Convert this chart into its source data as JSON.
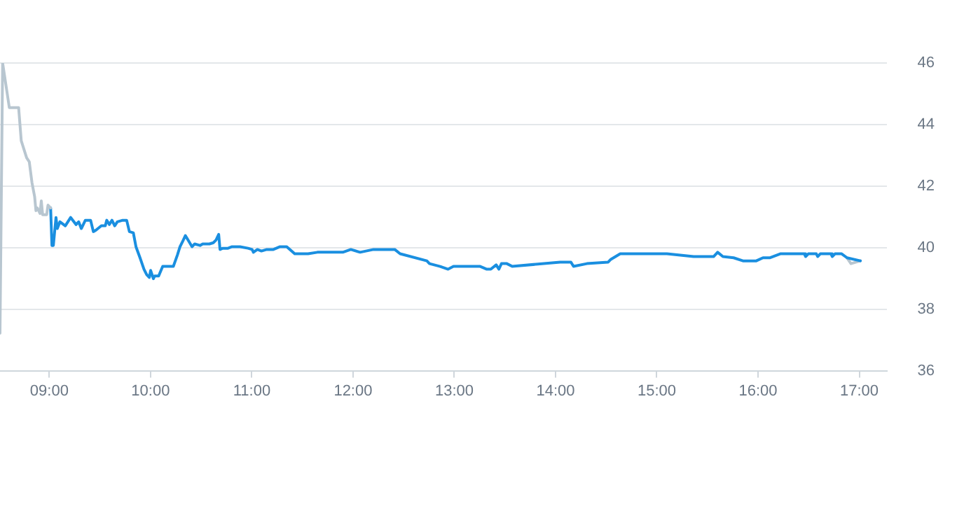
{
  "chart_data": {
    "type": "line",
    "xlim": [
      8.513,
      17.27
    ],
    "ylim": [
      36,
      46
    ],
    "xticks": [
      {
        "value": 9,
        "label": "09:00"
      },
      {
        "value": 10,
        "label": "10:00"
      },
      {
        "value": 11,
        "label": "11:00"
      },
      {
        "value": 12,
        "label": "12:00"
      },
      {
        "value": 13,
        "label": "13:00"
      },
      {
        "value": 14,
        "label": "14:00"
      },
      {
        "value": 15,
        "label": "15:00"
      },
      {
        "value": 16,
        "label": "16:00"
      },
      {
        "value": 17,
        "label": "17:00"
      }
    ],
    "yticks": [
      36,
      38,
      40,
      42,
      44,
      46
    ],
    "grid": "y",
    "marker": "none",
    "line_style": "solid",
    "series": [
      {
        "color": "#b8c6d0",
        "x": [
          8.513,
          8.539,
          8.605,
          8.697,
          8.723,
          8.776,
          8.802,
          8.829,
          8.855,
          8.868,
          8.881,
          8.895,
          8.908,
          8.921,
          8.934,
          8.974,
          8.987,
          9.013
        ],
        "values": [
          37.22,
          46,
          44.55,
          44.55,
          43.47,
          42.92,
          42.79,
          42.11,
          41.66,
          41.2,
          41.29,
          41.2,
          41.11,
          41.52,
          41.07,
          41.07,
          41.38,
          41.29
        ]
      },
      {
        "color": "#1a8fe0",
        "x": [
          9.013,
          9.026,
          9.04,
          9.066,
          9.079,
          9.105,
          9.158,
          9.211,
          9.264,
          9.29,
          9.316,
          9.356,
          9.408,
          9.435,
          9.461,
          9.514,
          9.553,
          9.567,
          9.593,
          9.619,
          9.646,
          9.672,
          9.725,
          9.764,
          9.791,
          9.83,
          9.856,
          9.896,
          9.935,
          9.962,
          9.988,
          10.001,
          10.028,
          10.041,
          10.08,
          10.12,
          10.225,
          10.265,
          10.291,
          10.318,
          10.344,
          10.37,
          10.41,
          10.436,
          10.489,
          10.515,
          10.581,
          10.621,
          10.647,
          10.673,
          10.686,
          10.713,
          10.765,
          10.805,
          10.884,
          10.963,
          11.003,
          11.016,
          11.055,
          11.095,
          11.148,
          11.213,
          11.279,
          11.345,
          11.424,
          11.556,
          11.648,
          11.899,
          11.978,
          12.07,
          12.202,
          12.412,
          12.465,
          12.729,
          12.755,
          12.86,
          12.939,
          12.992,
          13.256,
          13.321,
          13.361,
          13.414,
          13.44,
          13.466,
          13.519,
          13.572,
          14.046,
          14.152,
          14.178,
          14.31,
          14.52,
          14.547,
          14.639,
          15.1,
          15.364,
          15.561,
          15.601,
          15.653,
          15.759,
          15.851,
          15.983,
          16.049,
          16.115,
          16.22,
          16.259,
          16.457,
          16.47,
          16.497,
          16.576,
          16.589,
          16.615,
          16.72,
          16.733,
          16.76,
          16.826,
          16.879,
          17.011
        ],
        "values": [
          41.29,
          40.07,
          40.07,
          40.98,
          40.62,
          40.84,
          40.71,
          40.98,
          40.75,
          40.84,
          40.62,
          40.89,
          40.89,
          40.52,
          40.57,
          40.71,
          40.71,
          40.89,
          40.75,
          40.89,
          40.71,
          40.84,
          40.89,
          40.89,
          40.52,
          40.48,
          40.03,
          39.67,
          39.3,
          39.12,
          39.03,
          39.26,
          38.99,
          39.08,
          39.08,
          39.39,
          39.39,
          39.76,
          40.03,
          40.21,
          40.39,
          40.25,
          40.03,
          40.12,
          40.07,
          40.12,
          40.12,
          40.16,
          40.25,
          40.43,
          39.94,
          39.98,
          39.98,
          40.03,
          40.03,
          39.98,
          39.94,
          39.85,
          39.94,
          39.89,
          39.94,
          39.94,
          40.03,
          40.03,
          39.8,
          39.8,
          39.85,
          39.85,
          39.94,
          39.85,
          39.94,
          39.94,
          39.8,
          39.57,
          39.48,
          39.39,
          39.3,
          39.39,
          39.39,
          39.3,
          39.3,
          39.44,
          39.3,
          39.48,
          39.48,
          39.39,
          39.53,
          39.53,
          39.39,
          39.48,
          39.53,
          39.62,
          39.8,
          39.8,
          39.71,
          39.71,
          39.85,
          39.71,
          39.67,
          39.57,
          39.57,
          39.67,
          39.67,
          39.8,
          39.8,
          39.8,
          39.71,
          39.8,
          39.8,
          39.71,
          39.8,
          39.8,
          39.71,
          39.8,
          39.8,
          39.67,
          39.57
        ]
      },
      {
        "color": "#b8c6d0",
        "x": [
          16.879,
          16.918,
          17.011
        ],
        "values": [
          39.67,
          39.48,
          39.57
        ]
      }
    ]
  }
}
